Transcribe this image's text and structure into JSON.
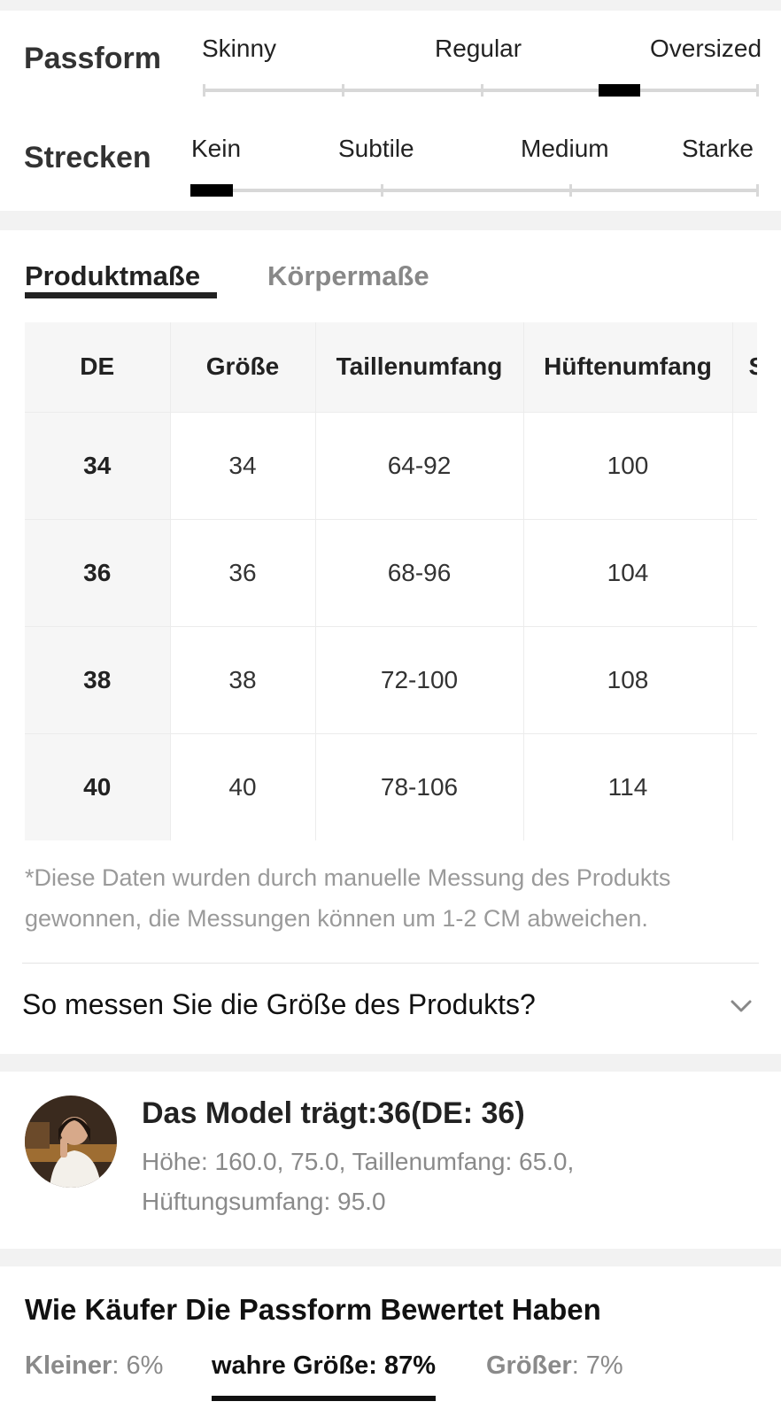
{
  "fit": {
    "title": "Passform",
    "options": [
      "Skinny",
      "Regular",
      "Oversized"
    ],
    "level": 0.75
  },
  "stretch": {
    "title": "Strecken",
    "options": [
      "Kein",
      "Subtile",
      "Medium",
      "Starke"
    ],
    "level": 0
  },
  "tabs": {
    "active": "Produktmaße",
    "inactive": "Körpermaße"
  },
  "table": {
    "headers": [
      "DE",
      "Größe",
      "Taillenumfang",
      "Hüftenumfang",
      "S"
    ],
    "rows": [
      [
        "34",
        "34",
        "64-92",
        "100",
        ""
      ],
      [
        "36",
        "36",
        "68-96",
        "104",
        ""
      ],
      [
        "38",
        "38",
        "72-100",
        "108",
        ""
      ],
      [
        "40",
        "40",
        "78-106",
        "114",
        ""
      ]
    ]
  },
  "disclaimer": "*Diese Daten wurden durch manuelle Messung des Produkts gewonnen, die Messungen können um 1-2 CM abweichen.",
  "how_to_measure": "So messen Sie die Größe des Produkts?",
  "model": {
    "title": "Das Model trägt:36(DE: 36)",
    "line1": "Höhe: 160.0,   75.0,  Taillenumfang: 65.0,",
    "line2": "Hüftungsumfang: 95.0"
  },
  "rating": {
    "title": "Wie Käufer Die Passform Bewertet Haben",
    "smaller_label": "Kleiner",
    "smaller_value": ": 6%",
    "true_label": "wahre Größe",
    "true_value": ": 87%",
    "larger_label": "Größer",
    "larger_value": ": 7%"
  }
}
